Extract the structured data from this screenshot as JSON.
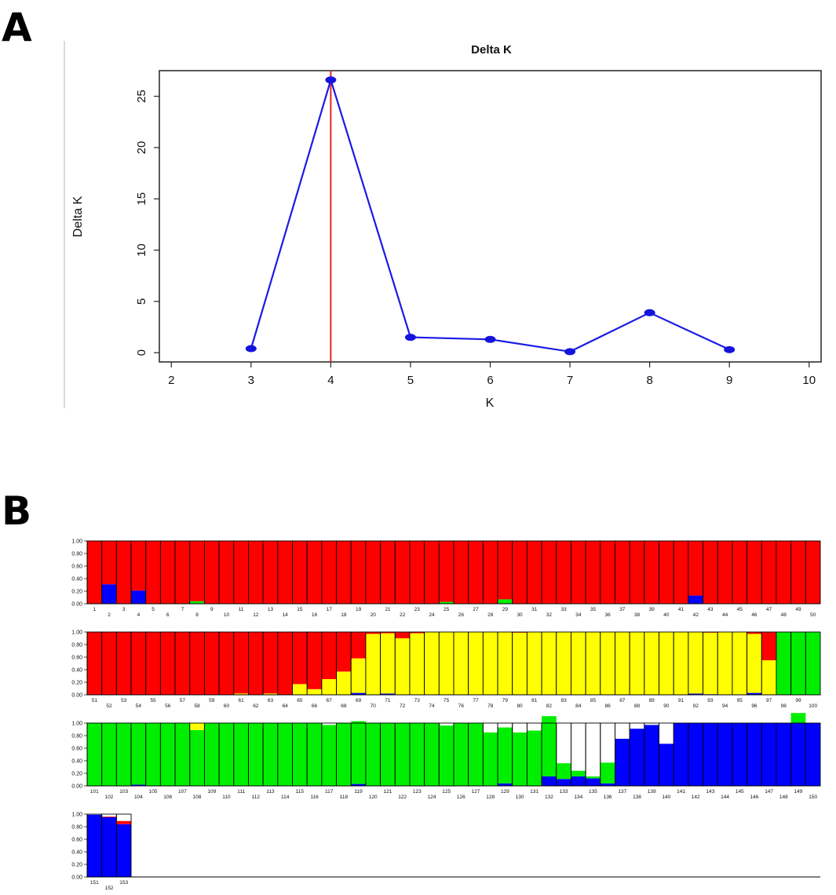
{
  "panel_a_label": "A",
  "panel_b_label": "B",
  "colors": {
    "line": "#1a1ae6",
    "marker": "#1414dd",
    "highlight": "#e8241c",
    "frame": "#222222",
    "cluster_1": "#ff0000",
    "cluster_2": "#ffff00",
    "cluster_3": "#00ee00",
    "cluster_4": "#0000ff"
  },
  "chart_data": [
    {
      "type": "line",
      "title": "Delta K",
      "xlabel": "K",
      "ylabel": "Delta K",
      "xlim": [
        1.85,
        10.15
      ],
      "ylim": [
        -0.9,
        27.5
      ],
      "x_ticks": [
        2,
        3,
        4,
        5,
        6,
        7,
        8,
        9,
        10
      ],
      "y_ticks": [
        0,
        5,
        10,
        15,
        20,
        25
      ],
      "x": [
        3,
        4,
        5,
        6,
        7,
        8,
        9
      ],
      "y": [
        0.4,
        26.6,
        1.5,
        1.3,
        0.1,
        3.9,
        0.3
      ],
      "highlight_x": 4
    },
    {
      "type": "bar",
      "stacked": true,
      "description_of_axes": "Stacked membership proportions for 153 individuals",
      "ylim": [
        0,
        1
      ],
      "y_ticks": [
        "0.00",
        "0.20",
        "0.40",
        "0.60",
        "0.80",
        "1.00"
      ],
      "series_names": [
        "cluster_1",
        "cluster_2",
        "cluster_3",
        "cluster_4"
      ],
      "categories": [
        "1",
        "2",
        "3",
        "4",
        "5",
        "6",
        "7",
        "8",
        "9",
        "10",
        "11",
        "12",
        "13",
        "14",
        "15",
        "16",
        "17",
        "18",
        "19",
        "20",
        "21",
        "22",
        "23",
        "24",
        "25",
        "26",
        "27",
        "28",
        "29",
        "30",
        "31",
        "32",
        "33",
        "34",
        "35",
        "36",
        "37",
        "38",
        "39",
        "40",
        "41",
        "42",
        "43",
        "44",
        "45",
        "46",
        "47",
        "48",
        "49",
        "50",
        "51",
        "52",
        "53",
        "54",
        "55",
        "56",
        "57",
        "58",
        "59",
        "60",
        "61",
        "62",
        "63",
        "64",
        "65",
        "66",
        "67",
        "68",
        "69",
        "70",
        "71",
        "72",
        "73",
        "74",
        "75",
        "76",
        "77",
        "78",
        "79",
        "80",
        "81",
        "82",
        "83",
        "84",
        "85",
        "86",
        "87",
        "88",
        "89",
        "90",
        "91",
        "92",
        "93",
        "94",
        "95",
        "96",
        "97",
        "98",
        "99",
        "100",
        "101",
        "102",
        "103",
        "104",
        "105",
        "106",
        "107",
        "108",
        "109",
        "110",
        "111",
        "112",
        "113",
        "114",
        "115",
        "116",
        "117",
        "118",
        "119",
        "120",
        "121",
        "122",
        "123",
        "124",
        "125",
        "126",
        "127",
        "128",
        "129",
        "130",
        "131",
        "132",
        "133",
        "134",
        "135",
        "136",
        "137",
        "138",
        "139",
        "140",
        "141",
        "142",
        "143",
        "144",
        "145",
        "146",
        "147",
        "148",
        "149",
        "150",
        "151",
        "152",
        "153"
      ],
      "blue": [
        0,
        0.31,
        0,
        0.21,
        0,
        0,
        0,
        0,
        0,
        0,
        0,
        0,
        0,
        0,
        0,
        0,
        0,
        0,
        0,
        0,
        0,
        0,
        0,
        0,
        0,
        0,
        0,
        0,
        0,
        0,
        0,
        0,
        0,
        0,
        0,
        0,
        0,
        0,
        0,
        0,
        0,
        0.13,
        0,
        0,
        0,
        0,
        0,
        0,
        0,
        0,
        0,
        0,
        0,
        0,
        0,
        0,
        0,
        0,
        0,
        0,
        0,
        0,
        0,
        0,
        0,
        0,
        0,
        0,
        0.03,
        0,
        0.02,
        0,
        0,
        0,
        0,
        0,
        0,
        0,
        0,
        0,
        0,
        0,
        0,
        0,
        0,
        0,
        0,
        0,
        0,
        0,
        0,
        0.02,
        0.01,
        0,
        0,
        0.03,
        0,
        0,
        0,
        0,
        0,
        0,
        0,
        0.02,
        0,
        0,
        0,
        0,
        0,
        0,
        0,
        0,
        0,
        0,
        0,
        0,
        0,
        0,
        0.03,
        0,
        0,
        0,
        0,
        0,
        0,
        0,
        0,
        0,
        0.04,
        0,
        0,
        0.15,
        0.11,
        0.15,
        0.12,
        0.04,
        0.75,
        0.91,
        0.97,
        0.67,
        1,
        1,
        1,
        1,
        1,
        1,
        1,
        1,
        1,
        1,
        0.99,
        0.95,
        0.84
      ],
      "green": [
        0,
        0,
        0,
        0,
        0,
        0,
        0,
        0.04,
        0,
        0,
        0,
        0,
        0,
        0,
        0,
        0,
        0,
        0,
        0,
        0,
        0,
        0,
        0,
        0,
        0.03,
        0,
        0,
        0,
        0.07,
        0,
        0,
        0,
        0,
        0,
        0,
        0,
        0,
        0,
        0,
        0,
        0,
        0,
        0,
        0,
        0,
        0,
        0,
        0,
        0,
        0,
        0,
        0,
        0,
        0,
        0,
        0,
        0,
        0,
        0,
        0,
        0,
        0,
        0,
        0,
        0,
        0,
        0,
        0,
        0,
        0,
        0,
        0,
        0,
        0,
        0,
        0,
        0,
        0,
        0,
        0,
        0,
        0,
        0,
        0,
        0,
        0,
        0,
        0,
        0,
        0,
        0,
        0,
        0,
        0,
        0,
        0,
        0,
        1,
        1,
        1,
        1,
        1,
        1,
        0.98,
        1,
        1,
        1,
        0.89,
        1,
        1,
        1,
        1,
        1,
        1,
        1,
        1,
        0.97,
        1,
        1,
        1,
        1,
        1,
        1,
        1,
        0.96,
        1,
        1,
        0.85,
        0.89,
        0.85,
        0.88,
        0.96,
        0.25,
        0.09,
        0.03,
        0.33,
        0,
        0,
        0,
        0,
        0,
        0,
        0,
        0,
        0,
        0,
        0,
        0,
        0.16
      ],
      "yellow": [
        0,
        0,
        0,
        0,
        0,
        0,
        0,
        0,
        0,
        0,
        0,
        0,
        0,
        0,
        0,
        0,
        0,
        0,
        0,
        0,
        0,
        0,
        0,
        0,
        0,
        0,
        0,
        0,
        0,
        0,
        0,
        0,
        0,
        0,
        0,
        0,
        0,
        0,
        0,
        0,
        0,
        0,
        0,
        0,
        0,
        0,
        0,
        0,
        0,
        0,
        0,
        0,
        0,
        0,
        0,
        0,
        0,
        0,
        0,
        0,
        0.02,
        0,
        0.02,
        0,
        0.17,
        0.09,
        0.25,
        0.37,
        0.55,
        0.97,
        0.96,
        0.9,
        0.98,
        1,
        1,
        1,
        1,
        1,
        1,
        0.99,
        1,
        1,
        1,
        1,
        1,
        1,
        1,
        1,
        1,
        1,
        1,
        0.98,
        0.98,
        1,
        1,
        0.94,
        0.55,
        0,
        0,
        0,
        0,
        0,
        0,
        0,
        0,
        0,
        0,
        0.11,
        0,
        0,
        0,
        0,
        0,
        0,
        0,
        0,
        0,
        0,
        0,
        0,
        0,
        0,
        0,
        0,
        0,
        0,
        0,
        0,
        0,
        0,
        0,
        0,
        0,
        0,
        0,
        0,
        0,
        0,
        0,
        0,
        0,
        0,
        0,
        0,
        0,
        0,
        0,
        0,
        0,
        0,
        0
      ],
      "red": [
        1,
        0.69,
        1,
        0.79,
        1,
        1,
        1,
        0.96,
        1,
        1,
        1,
        1,
        1,
        1,
        1,
        1,
        1,
        1,
        1,
        1,
        1,
        1,
        1,
        1,
        0.97,
        1,
        1,
        1,
        0.93,
        1,
        1,
        1,
        1,
        1,
        1,
        1,
        1,
        1,
        1,
        1,
        1,
        0.87,
        1,
        1,
        1,
        1,
        1,
        1,
        1,
        1,
        1,
        1,
        1,
        1,
        1,
        1,
        1,
        1,
        1,
        1,
        0.98,
        1,
        0.98,
        1,
        0.83,
        0.91,
        0.75,
        0.63,
        0.42,
        0.03,
        0.02,
        0.1,
        0.02,
        0,
        0,
        0,
        0,
        0,
        0,
        0.01,
        0,
        0,
        0,
        0,
        0,
        0,
        0,
        0,
        0,
        0,
        0,
        0,
        0.01,
        0,
        0,
        0.03,
        0.45,
        0,
        0,
        0,
        0,
        0,
        0,
        0,
        0,
        0,
        0,
        0,
        0,
        0,
        0,
        0,
        0,
        0,
        0,
        0,
        0,
        0,
        0,
        0,
        0,
        0,
        0,
        0,
        0,
        0,
        0,
        0,
        0,
        0,
        0,
        0,
        0,
        0,
        0,
        0,
        0,
        0,
        0,
        0,
        0,
        0,
        0,
        0,
        0,
        0,
        0,
        0,
        0,
        0,
        0,
        0.01,
        0.05,
        0
      ]
    }
  ]
}
